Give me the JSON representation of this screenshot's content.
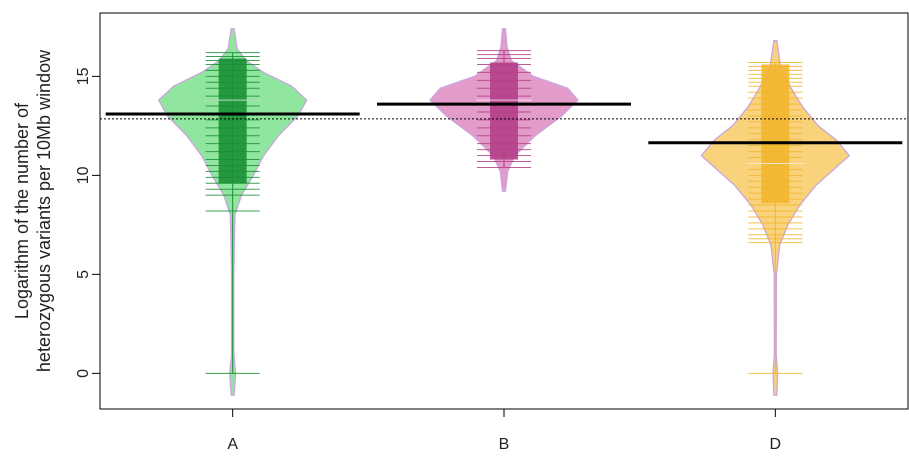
{
  "chart_data": {
    "type": "beanplot",
    "title": "",
    "ylabel_line1": "Logarithm of the number of",
    "ylabel_line2": "heterozygous variants per 10Mb window",
    "xlabel": "",
    "ylim": [
      -1.8,
      18.2
    ],
    "yticks": [
      0,
      5,
      10,
      15
    ],
    "categories": [
      "A",
      "B",
      "D"
    ],
    "overall_mean": 12.85,
    "grid": false,
    "legend": "none",
    "series": [
      {
        "name": "A",
        "color": "#1a8f35",
        "fill": "#90e59f",
        "mean": 13.1,
        "median": 13.8,
        "box": [
          9.6,
          15.9
        ],
        "range": [
          0.0,
          16.2
        ],
        "points": [
          16.2,
          16.0,
          15.8,
          15.6,
          15.3,
          15.0,
          14.7,
          14.4,
          14.0,
          13.8,
          13.5,
          13.1,
          12.8,
          12.4,
          12.0,
          11.6,
          11.2,
          10.8,
          10.5,
          10.2,
          9.9,
          9.6,
          9.3,
          9.0,
          8.2,
          0.0
        ],
        "density": [
          [
            -1.1,
            0.02
          ],
          [
            0.0,
            0.04
          ],
          [
            1.0,
            0.015
          ],
          [
            5.0,
            0.015
          ],
          [
            8.0,
            0.03
          ],
          [
            9.0,
            0.12
          ],
          [
            10.0,
            0.28
          ],
          [
            11.0,
            0.42
          ],
          [
            12.0,
            0.62
          ],
          [
            13.0,
            0.88
          ],
          [
            13.8,
            1.0
          ],
          [
            14.5,
            0.8
          ],
          [
            15.2,
            0.42
          ],
          [
            15.8,
            0.18
          ],
          [
            16.4,
            0.06
          ],
          [
            17.4,
            0.02
          ]
        ]
      },
      {
        "name": "B",
        "color": "#b33f87",
        "fill": "#e39cc9",
        "mean": 13.6,
        "median": 13.8,
        "box": [
          10.8,
          15.7
        ],
        "range": [
          10.4,
          16.3
        ],
        "points": [
          16.3,
          16.1,
          15.9,
          15.6,
          15.2,
          14.8,
          14.4,
          14.0,
          13.6,
          13.2,
          12.8,
          12.4,
          12.0,
          11.6,
          11.3,
          11.0,
          10.7,
          10.4
        ],
        "density": [
          [
            9.2,
            0.02
          ],
          [
            10.2,
            0.05
          ],
          [
            11.0,
            0.15
          ],
          [
            12.0,
            0.42
          ],
          [
            13.0,
            0.78
          ],
          [
            13.8,
            1.0
          ],
          [
            14.4,
            0.86
          ],
          [
            15.0,
            0.4
          ],
          [
            15.8,
            0.1
          ],
          [
            16.5,
            0.04
          ],
          [
            17.4,
            0.02
          ]
        ]
      },
      {
        "name": "D",
        "color": "#f2b62f",
        "fill": "#f9d27c",
        "mean": 11.65,
        "median": 10.6,
        "box": [
          8.6,
          15.6
        ],
        "range": [
          0.0,
          15.7
        ],
        "points": [
          15.7,
          15.5,
          15.3,
          15.1,
          14.9,
          14.7,
          14.5,
          14.2,
          13.9,
          13.6,
          13.3,
          13.0,
          12.7,
          12.4,
          12.1,
          11.8,
          11.5,
          11.2,
          10.9,
          10.6,
          10.3,
          10.0,
          9.7,
          9.4,
          9.1,
          8.8,
          8.5,
          8.2,
          7.9,
          7.6,
          7.3,
          7.0,
          6.8,
          6.6,
          0.0
        ],
        "density": [
          [
            -1.1,
            0.02
          ],
          [
            0.0,
            0.03
          ],
          [
            1.0,
            0.012
          ],
          [
            5.0,
            0.015
          ],
          [
            6.5,
            0.06
          ],
          [
            7.5,
            0.17
          ],
          [
            8.5,
            0.33
          ],
          [
            9.5,
            0.55
          ],
          [
            10.5,
            0.85
          ],
          [
            11.0,
            1.0
          ],
          [
            11.8,
            0.82
          ],
          [
            12.5,
            0.58
          ],
          [
            13.5,
            0.36
          ],
          [
            14.5,
            0.2
          ],
          [
            15.5,
            0.07
          ],
          [
            16.8,
            0.02
          ]
        ]
      }
    ]
  }
}
